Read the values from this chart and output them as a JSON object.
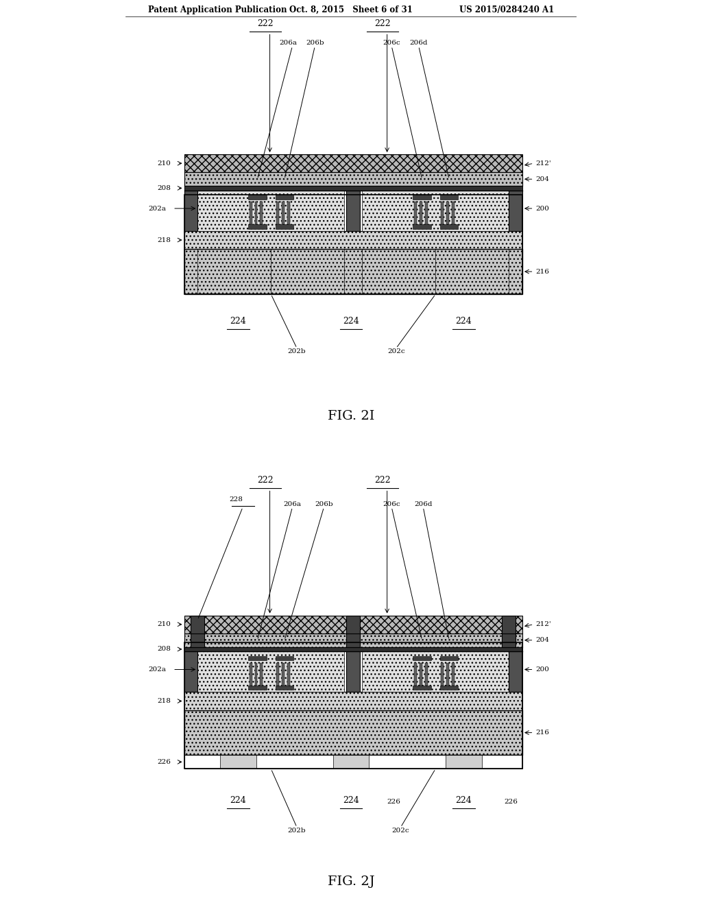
{
  "bg_color": "#ffffff",
  "header_left": "Patent Application Publication",
  "header_mid": "Oct. 8, 2015   Sheet 6 of 31",
  "header_right": "US 2015/0284240 A1",
  "fig1_label": "FIG. 2I",
  "fig2_label": "FIG. 2J",
  "line_color": "#000000",
  "fill_light_gray": "#c8c8c8",
  "fill_medium_gray": "#a0a0a0",
  "fill_dark": "#404040",
  "fill_dotted_light": "#d8d8d8",
  "fill_dotted_medium": "#b0b0b0"
}
